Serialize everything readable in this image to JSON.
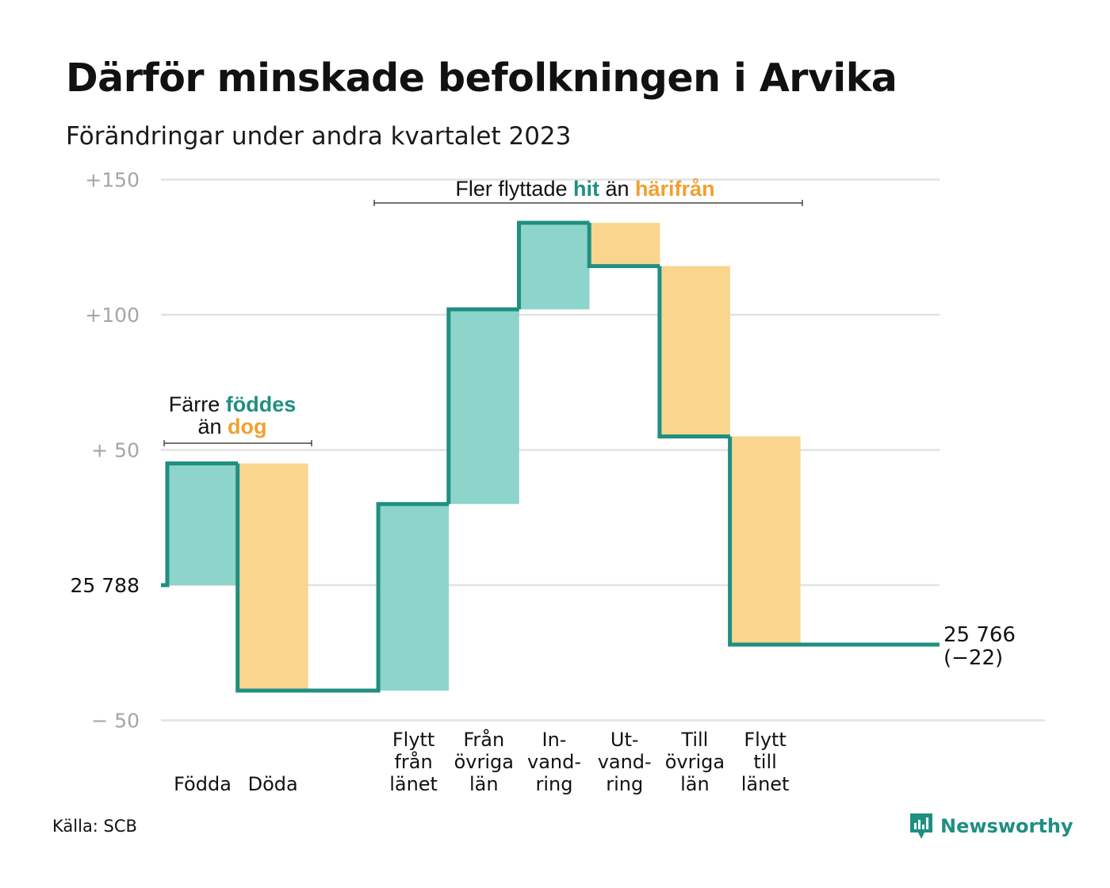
{
  "title": "Därför minskade befolkningen i Arvika",
  "subtitle": "Förändringar under andra kvartalet 2023",
  "source": "Källa: SCB",
  "brand": "Newsworthy",
  "colors": {
    "increase_fill": "#8dd4ca",
    "decrease_fill": "#f9d58e",
    "step_line": "#1f8f82",
    "highlight_increase": "#1f8f82",
    "highlight_decrease": "#f0a030",
    "grid": "#e2e2e2",
    "tick": "#a5a5a5"
  },
  "annotations": {
    "natural": {
      "prefix": "Färre ",
      "hl1": "föddes",
      "mid": "än ",
      "hl2": "dog"
    },
    "migration": {
      "prefix": "Fler flyttade ",
      "hl1": "hit",
      "mid": " än ",
      "hl2": "härifrån"
    }
  },
  "chart_data": {
    "type": "waterfall",
    "y_tick_labels": [
      "+150",
      "+100",
      "+  50",
      "25  788",
      "−  50"
    ],
    "ylim": [
      -50,
      150
    ],
    "start": {
      "label": "25  788",
      "value": 25788
    },
    "end": {
      "label_line1": "25 766",
      "label_line2": "(−22)",
      "value": 25766,
      "change": -22
    },
    "categories": [
      {
        "label_lines": [
          "Födda"
        ],
        "change": 45
      },
      {
        "label_lines": [
          "Döda"
        ],
        "change": -84
      },
      {
        "label_lines": [
          "Flytt",
          "från",
          "länet"
        ],
        "change": 69
      },
      {
        "label_lines": [
          "Från",
          "övriga",
          "län"
        ],
        "change": 72
      },
      {
        "label_lines": [
          "In-",
          "vand-",
          "ring"
        ],
        "change": 32
      },
      {
        "label_lines": [
          "Ut-",
          "vand-",
          "ring"
        ],
        "change": -16
      },
      {
        "label_lines": [
          "Till",
          "övriga",
          "län"
        ],
        "change": -63
      },
      {
        "label_lines": [
          "Flytt",
          "till",
          "länet"
        ],
        "change": -77
      }
    ]
  }
}
